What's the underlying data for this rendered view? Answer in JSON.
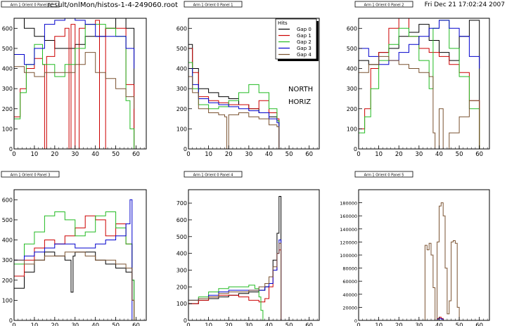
{
  "header": {
    "file_label": "result/onlMon/histos-1-4-249060.root",
    "timestamp": "Fri Dec 21 17:02:24 2007"
  },
  "colors": {
    "gap0": "#000000",
    "gap1": "#cc0000",
    "gap2": "#22bb22",
    "gap3": "#0000cc",
    "gap4": "#7a5230",
    "frame": "#000000"
  },
  "legend": {
    "title": "Hits",
    "entries": [
      "Gap 0",
      "Gap 1",
      "Gap 2",
      "Gap 3",
      "Gap 4"
    ]
  },
  "annotations": [
    "NORTH",
    "HORIZ"
  ],
  "chart_data": [
    {
      "type": "line",
      "title": "Arm 1 Orient 0 Panel 0",
      "xlim": [
        0,
        65
      ],
      "ylim": [
        0,
        650
      ],
      "xticks": [
        0,
        10,
        20,
        30,
        40,
        50,
        60
      ],
      "yticks": [
        0,
        100,
        200,
        300,
        400,
        500,
        600
      ],
      "ytick_labels": [
        "0",
        "100",
        "200",
        "300",
        "400",
        "500",
        "600"
      ],
      "series": [
        {
          "name": "Gap 0",
          "x": [
            0,
            5,
            10,
            15,
            20,
            25,
            30,
            35,
            40,
            45,
            50,
            55,
            59
          ],
          "y": [
            680,
            600,
            560,
            540,
            500,
            500,
            520,
            560,
            560,
            600,
            650,
            600,
            0
          ]
        },
        {
          "name": "Gap 1",
          "x": [
            0,
            3,
            6,
            10,
            14,
            15,
            16,
            20,
            25,
            27,
            28,
            30,
            32,
            35,
            40,
            42,
            45,
            50,
            55,
            59
          ],
          "y": [
            160,
            300,
            400,
            450,
            420,
            0,
            460,
            560,
            600,
            0,
            620,
            0,
            600,
            620,
            640,
            0,
            600,
            600,
            320,
            0
          ]
        },
        {
          "name": "Gap 2",
          "x": [
            0,
            3,
            6,
            10,
            14,
            20,
            25,
            30,
            35,
            40,
            45,
            50,
            55,
            57,
            59
          ],
          "y": [
            150,
            280,
            420,
            520,
            420,
            360,
            420,
            500,
            620,
            620,
            600,
            560,
            240,
            100,
            0
          ]
        },
        {
          "name": "Gap 3",
          "x": [
            0,
            5,
            10,
            15,
            20,
            25,
            30,
            35,
            40,
            45,
            50,
            55,
            59
          ],
          "y": [
            470,
            420,
            500,
            620,
            640,
            660,
            640,
            620,
            560,
            560,
            560,
            500,
            400
          ]
        },
        {
          "name": "Gap 4",
          "x": [
            0,
            5,
            10,
            15,
            20,
            25,
            30,
            35,
            40,
            45,
            50,
            55,
            59
          ],
          "y": [
            410,
            380,
            360,
            380,
            380,
            380,
            420,
            480,
            380,
            350,
            300,
            260,
            200
          ]
        }
      ]
    },
    {
      "type": "line",
      "title": "Arm 1 Orient 0 Panel 1",
      "xlim": [
        0,
        65
      ],
      "ylim": [
        0,
        650
      ],
      "xticks": [
        0,
        10,
        20,
        30,
        40,
        50,
        60
      ],
      "yticks": [
        0,
        100,
        200,
        300,
        400,
        500,
        600
      ],
      "ytick_labels": [
        "0",
        "100",
        "200",
        "300",
        "400",
        "500",
        "600"
      ],
      "series": [
        {
          "name": "Gap 0",
          "x": [
            0,
            2,
            5,
            10,
            15,
            20,
            25,
            30,
            35,
            40,
            44,
            45
          ],
          "y": [
            520,
            400,
            300,
            280,
            260,
            250,
            220,
            200,
            180,
            160,
            140,
            0
          ]
        },
        {
          "name": "Gap 1",
          "x": [
            0,
            2,
            5,
            10,
            15,
            20,
            25,
            30,
            35,
            40,
            44,
            45
          ],
          "y": [
            500,
            380,
            260,
            240,
            230,
            220,
            220,
            200,
            240,
            180,
            150,
            0
          ]
        },
        {
          "name": "Gap 2",
          "x": [
            0,
            2,
            5,
            10,
            15,
            20,
            25,
            30,
            35,
            40,
            44,
            45
          ],
          "y": [
            430,
            300,
            220,
            200,
            210,
            240,
            280,
            320,
            280,
            200,
            140,
            0
          ]
        },
        {
          "name": "Gap 3",
          "x": [
            0,
            2,
            5,
            10,
            15,
            20,
            25,
            30,
            35,
            40,
            44,
            45
          ],
          "y": [
            400,
            320,
            250,
            230,
            220,
            210,
            200,
            190,
            180,
            150,
            130,
            0
          ]
        },
        {
          "name": "Gap 4",
          "x": [
            0,
            2,
            5,
            10,
            15,
            18,
            19,
            20,
            25,
            30,
            35,
            40,
            44,
            45
          ],
          "y": [
            360,
            280,
            200,
            180,
            170,
            160,
            0,
            170,
            180,
            160,
            150,
            120,
            110,
            0
          ]
        }
      ]
    },
    {
      "type": "line",
      "title": "Arm 1 Orient 0 Panel 2",
      "xlim": [
        0,
        65
      ],
      "ylim": [
        0,
        650
      ],
      "xticks": [
        0,
        10,
        20,
        30,
        40,
        50,
        60
      ],
      "yticks": [
        0,
        100,
        200,
        300,
        400,
        500,
        600
      ],
      "ytick_labels": [
        "0",
        "100",
        "200",
        "300",
        "400",
        "500",
        "600"
      ],
      "series": [
        {
          "name": "Gap 0",
          "x": [
            0,
            5,
            10,
            15,
            20,
            25,
            30,
            35,
            40,
            45,
            50,
            55,
            60
          ],
          "y": [
            440,
            420,
            480,
            500,
            560,
            580,
            620,
            540,
            480,
            440,
            560,
            640,
            0
          ]
        },
        {
          "name": "Gap 1",
          "x": [
            0,
            3,
            6,
            10,
            15,
            20,
            25,
            30,
            35,
            40,
            45,
            50,
            55,
            60
          ],
          "y": [
            100,
            200,
            400,
            480,
            600,
            660,
            560,
            500,
            480,
            460,
            420,
            380,
            240,
            0
          ]
        },
        {
          "name": "Gap 2",
          "x": [
            0,
            3,
            6,
            10,
            15,
            20,
            25,
            30,
            35,
            37,
            40,
            45,
            50,
            55,
            60
          ],
          "y": [
            80,
            160,
            300,
            440,
            520,
            600,
            560,
            440,
            300,
            600,
            640,
            500,
            360,
            200,
            0
          ]
        },
        {
          "name": "Gap 3",
          "x": [
            0,
            5,
            10,
            15,
            20,
            25,
            30,
            35,
            40,
            45,
            50,
            55,
            60
          ],
          "y": [
            500,
            460,
            420,
            440,
            480,
            520,
            560,
            600,
            640,
            600,
            560,
            460,
            400
          ]
        },
        {
          "name": "Gap 4",
          "x": [
            0,
            5,
            10,
            15,
            20,
            25,
            30,
            35,
            37,
            38,
            40,
            42,
            45,
            50,
            55,
            60
          ],
          "y": [
            380,
            420,
            460,
            440,
            420,
            400,
            380,
            360,
            80,
            0,
            200,
            0,
            80,
            160,
            240,
            0
          ]
        }
      ]
    },
    {
      "type": "line",
      "title": "Arm 1 Orient 0 Panel 3",
      "xlim": [
        0,
        65
      ],
      "ylim": [
        0,
        650
      ],
      "xticks": [
        0,
        10,
        20,
        30,
        40,
        50,
        60
      ],
      "yticks": [
        0,
        100,
        200,
        300,
        400,
        500,
        600
      ],
      "ytick_labels": [
        "0",
        "100",
        "200",
        "300",
        "400",
        "500",
        "600"
      ],
      "series": [
        {
          "name": "Gap 0",
          "x": [
            0,
            5,
            10,
            15,
            20,
            25,
            28,
            29,
            30,
            35,
            40,
            45,
            50,
            55,
            58,
            59
          ],
          "y": [
            160,
            240,
            300,
            340,
            320,
            300,
            140,
            320,
            340,
            340,
            300,
            280,
            260,
            240,
            200,
            0
          ]
        },
        {
          "name": "Gap 1",
          "x": [
            0,
            5,
            10,
            15,
            20,
            25,
            30,
            35,
            40,
            45,
            50,
            55,
            58,
            59
          ],
          "y": [
            220,
            300,
            360,
            400,
            380,
            420,
            460,
            520,
            500,
            420,
            480,
            380,
            100,
            0
          ]
        },
        {
          "name": "Gap 2",
          "x": [
            0,
            5,
            10,
            15,
            20,
            25,
            30,
            35,
            40,
            45,
            50,
            55,
            58,
            59
          ],
          "y": [
            280,
            380,
            440,
            520,
            540,
            500,
            420,
            440,
            520,
            540,
            460,
            380,
            200,
            0
          ]
        },
        {
          "name": "Gap 3",
          "x": [
            0,
            5,
            10,
            15,
            20,
            25,
            30,
            35,
            40,
            45,
            50,
            55,
            57,
            58
          ],
          "y": [
            300,
            320,
            340,
            360,
            380,
            380,
            360,
            360,
            380,
            400,
            420,
            480,
            600,
            0
          ]
        },
        {
          "name": "Gap 4",
          "x": [
            0,
            5,
            10,
            15,
            20,
            25,
            30,
            35,
            40,
            45,
            50,
            55,
            58,
            59
          ],
          "y": [
            300,
            280,
            300,
            320,
            320,
            340,
            340,
            320,
            300,
            300,
            280,
            260,
            100,
            0
          ]
        }
      ]
    },
    {
      "type": "line",
      "title": "Arm 1 Orient 0 Panel 4",
      "xlim": [
        0,
        65
      ],
      "ylim": [
        0,
        780
      ],
      "xticks": [
        0,
        10,
        20,
        30,
        40,
        50,
        60
      ],
      "yticks": [
        0,
        100,
        200,
        300,
        400,
        500,
        600,
        700
      ],
      "ytick_labels": [
        "0",
        "100",
        "200",
        "300",
        "400",
        "500",
        "600",
        "700"
      ],
      "series": [
        {
          "name": "Gap 0",
          "x": [
            0,
            5,
            10,
            15,
            20,
            25,
            30,
            35,
            38,
            40,
            42,
            44,
            45,
            46
          ],
          "y": [
            100,
            120,
            130,
            140,
            150,
            160,
            170,
            180,
            200,
            260,
            360,
            520,
            740,
            0
          ]
        },
        {
          "name": "Gap 1",
          "x": [
            0,
            5,
            10,
            15,
            20,
            25,
            30,
            35,
            38,
            40,
            42,
            44,
            45,
            46
          ],
          "y": [
            100,
            120,
            140,
            150,
            150,
            140,
            120,
            110,
            130,
            200,
            300,
            400,
            420,
            0
          ]
        },
        {
          "name": "Gap 2",
          "x": [
            0,
            5,
            10,
            15,
            20,
            25,
            30,
            33,
            35,
            36,
            37
          ],
          "y": [
            120,
            140,
            170,
            190,
            200,
            200,
            210,
            190,
            140,
            60,
            0
          ]
        },
        {
          "name": "Gap 3",
          "x": [
            0,
            5,
            10,
            15,
            20,
            25,
            30,
            35,
            38,
            40,
            42,
            44,
            45,
            46
          ],
          "y": [
            120,
            130,
            150,
            170,
            180,
            180,
            180,
            180,
            200,
            220,
            300,
            400,
            480,
            0
          ]
        },
        {
          "name": "Gap 4",
          "x": [
            0,
            5,
            10,
            15,
            20,
            25,
            30,
            35,
            38,
            40,
            42,
            44,
            45,
            46
          ],
          "y": [
            120,
            130,
            140,
            160,
            170,
            170,
            180,
            200,
            220,
            260,
            320,
            400,
            460,
            0
          ]
        }
      ]
    },
    {
      "type": "line",
      "title": "Arm 1 Orient 0 Panel 5",
      "xlim": [
        0,
        65
      ],
      "ylim": [
        0,
        200000
      ],
      "xticks": [
        0,
        10,
        20,
        30,
        40,
        50,
        60
      ],
      "yticks": [
        0,
        20000,
        40000,
        60000,
        80000,
        100000,
        120000,
        140000,
        160000,
        180000
      ],
      "ytick_labels": [
        "0",
        "20000",
        "40000",
        "60000",
        "80000",
        "100000",
        "120000",
        "140000",
        "160000",
        "180000"
      ],
      "series": [
        {
          "name": "Gap 0",
          "x": [
            0,
            65
          ],
          "y": [
            0,
            0
          ]
        },
        {
          "name": "Gap 1",
          "x": [
            0,
            38,
            39,
            40,
            41,
            42,
            65
          ],
          "y": [
            0,
            0,
            3000,
            5000,
            3000,
            0,
            0
          ]
        },
        {
          "name": "Gap 2",
          "x": [
            0,
            65
          ],
          "y": [
            0,
            0
          ]
        },
        {
          "name": "Gap 3",
          "x": [
            0,
            38,
            39,
            40,
            41,
            42,
            65
          ],
          "y": [
            0,
            0,
            2000,
            3000,
            2000,
            0,
            0
          ]
        },
        {
          "name": "Gap 4",
          "x": [
            0,
            32,
            33,
            34,
            35,
            36,
            37,
            38,
            39,
            40,
            41,
            42,
            43,
            44,
            45,
            46,
            47,
            48,
            49,
            50,
            51,
            65
          ],
          "y": [
            0,
            0,
            115000,
            108000,
            118000,
            100000,
            50000,
            0,
            120000,
            175000,
            180000,
            160000,
            80000,
            10000,
            30000,
            120000,
            122000,
            118000,
            20000,
            0,
            0,
            0
          ]
        }
      ]
    }
  ]
}
